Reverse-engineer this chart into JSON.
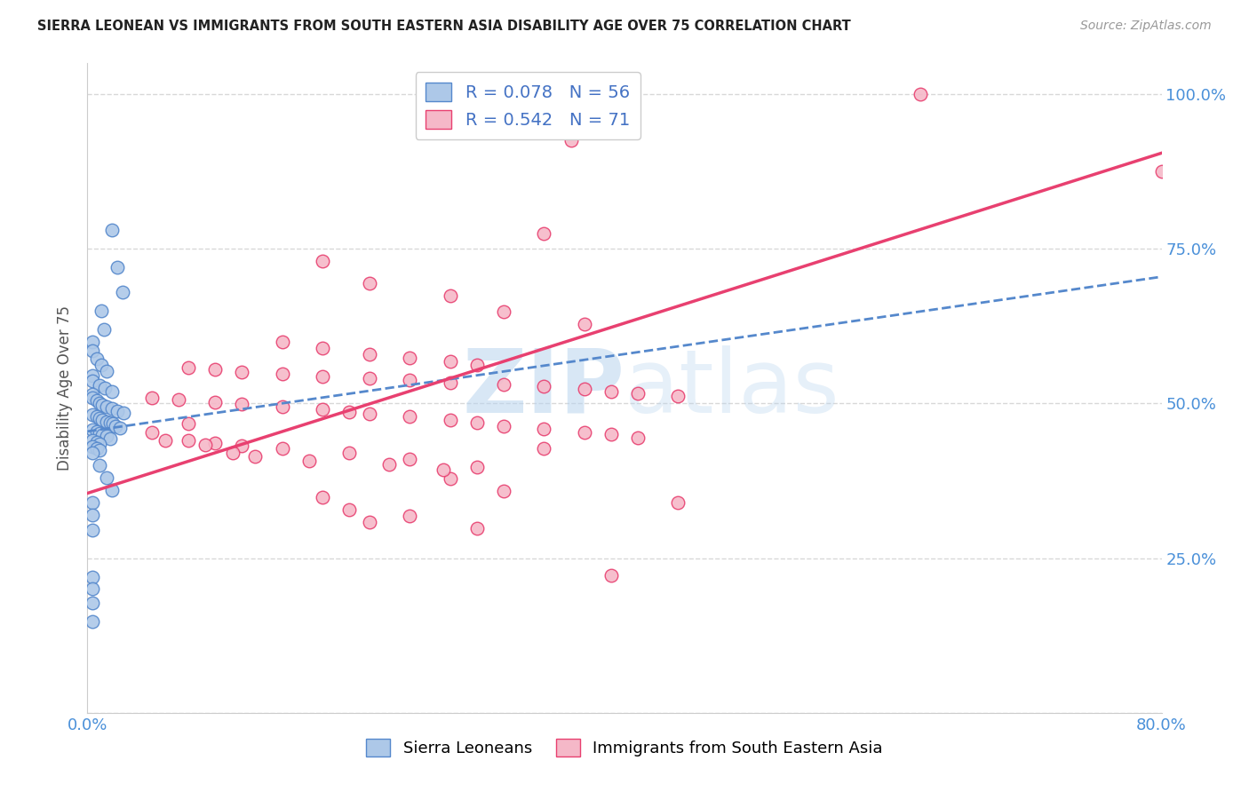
{
  "title": "SIERRA LEONEAN VS IMMIGRANTS FROM SOUTH EASTERN ASIA DISABILITY AGE OVER 75 CORRELATION CHART",
  "source": "Source: ZipAtlas.com",
  "xlabel": "",
  "ylabel": "Disability Age Over 75",
  "xlim": [
    0.0,
    0.8
  ],
  "ylim": [
    0.0,
    1.05
  ],
  "ytick_labels": [
    "",
    "25.0%",
    "50.0%",
    "75.0%",
    "100.0%"
  ],
  "ytick_values": [
    0.0,
    0.25,
    0.5,
    0.75,
    1.0
  ],
  "xtick_values": [
    0.0,
    0.1,
    0.2,
    0.3,
    0.4,
    0.5,
    0.6,
    0.7,
    0.8
  ],
  "legend_labels": [
    "Sierra Leoneans",
    "Immigrants from South Eastern Asia"
  ],
  "blue_R": 0.078,
  "blue_N": 56,
  "pink_R": 0.542,
  "pink_N": 71,
  "blue_color": "#adc8e8",
  "pink_color": "#f5b8c8",
  "blue_line_color": "#5588cc",
  "pink_line_color": "#e84070",
  "blue_trendline": [
    0.0,
    0.455,
    0.8,
    0.705
  ],
  "pink_trendline": [
    0.0,
    0.355,
    0.8,
    0.905
  ],
  "blue_scatter": [
    [
      0.018,
      0.78
    ],
    [
      0.022,
      0.72
    ],
    [
      0.026,
      0.68
    ],
    [
      0.01,
      0.65
    ],
    [
      0.012,
      0.62
    ],
    [
      0.004,
      0.6
    ],
    [
      0.004,
      0.585
    ],
    [
      0.007,
      0.572
    ],
    [
      0.01,
      0.562
    ],
    [
      0.014,
      0.552
    ],
    [
      0.004,
      0.545
    ],
    [
      0.004,
      0.537
    ],
    [
      0.009,
      0.53
    ],
    [
      0.013,
      0.525
    ],
    [
      0.018,
      0.52
    ],
    [
      0.004,
      0.515
    ],
    [
      0.004,
      0.51
    ],
    [
      0.007,
      0.505
    ],
    [
      0.009,
      0.5
    ],
    [
      0.011,
      0.498
    ],
    [
      0.014,
      0.495
    ],
    [
      0.018,
      0.492
    ],
    [
      0.022,
      0.488
    ],
    [
      0.027,
      0.485
    ],
    [
      0.004,
      0.482
    ],
    [
      0.007,
      0.479
    ],
    [
      0.009,
      0.477
    ],
    [
      0.011,
      0.474
    ],
    [
      0.014,
      0.471
    ],
    [
      0.017,
      0.469
    ],
    [
      0.019,
      0.467
    ],
    [
      0.021,
      0.464
    ],
    [
      0.024,
      0.461
    ],
    [
      0.004,
      0.458
    ],
    [
      0.007,
      0.455
    ],
    [
      0.009,
      0.452
    ],
    [
      0.011,
      0.449
    ],
    [
      0.014,
      0.447
    ],
    [
      0.017,
      0.444
    ],
    [
      0.004,
      0.44
    ],
    [
      0.007,
      0.437
    ],
    [
      0.009,
      0.434
    ],
    [
      0.004,
      0.43
    ],
    [
      0.007,
      0.427
    ],
    [
      0.009,
      0.424
    ],
    [
      0.004,
      0.42
    ],
    [
      0.009,
      0.4
    ],
    [
      0.014,
      0.38
    ],
    [
      0.018,
      0.36
    ],
    [
      0.004,
      0.34
    ],
    [
      0.004,
      0.32
    ],
    [
      0.004,
      0.295
    ],
    [
      0.004,
      0.22
    ],
    [
      0.004,
      0.2
    ],
    [
      0.004,
      0.178
    ],
    [
      0.004,
      0.148
    ]
  ],
  "pink_scatter": [
    [
      0.62,
      1.0
    ],
    [
      0.36,
      0.925
    ],
    [
      0.8,
      0.875
    ],
    [
      0.34,
      0.775
    ],
    [
      0.175,
      0.73
    ],
    [
      0.21,
      0.695
    ],
    [
      0.27,
      0.675
    ],
    [
      0.31,
      0.648
    ],
    [
      0.37,
      0.628
    ],
    [
      0.145,
      0.6
    ],
    [
      0.175,
      0.59
    ],
    [
      0.21,
      0.58
    ],
    [
      0.24,
      0.574
    ],
    [
      0.27,
      0.568
    ],
    [
      0.29,
      0.563
    ],
    [
      0.075,
      0.558
    ],
    [
      0.095,
      0.555
    ],
    [
      0.115,
      0.551
    ],
    [
      0.145,
      0.548
    ],
    [
      0.175,
      0.544
    ],
    [
      0.21,
      0.541
    ],
    [
      0.24,
      0.538
    ],
    [
      0.27,
      0.534
    ],
    [
      0.31,
      0.531
    ],
    [
      0.34,
      0.528
    ],
    [
      0.37,
      0.524
    ],
    [
      0.39,
      0.52
    ],
    [
      0.41,
      0.516
    ],
    [
      0.44,
      0.512
    ],
    [
      0.048,
      0.509
    ],
    [
      0.068,
      0.506
    ],
    [
      0.095,
      0.502
    ],
    [
      0.115,
      0.499
    ],
    [
      0.145,
      0.495
    ],
    [
      0.175,
      0.491
    ],
    [
      0.195,
      0.487
    ],
    [
      0.21,
      0.483
    ],
    [
      0.24,
      0.479
    ],
    [
      0.27,
      0.474
    ],
    [
      0.29,
      0.469
    ],
    [
      0.31,
      0.464
    ],
    [
      0.34,
      0.459
    ],
    [
      0.37,
      0.454
    ],
    [
      0.39,
      0.45
    ],
    [
      0.41,
      0.445
    ],
    [
      0.075,
      0.44
    ],
    [
      0.095,
      0.436
    ],
    [
      0.115,
      0.432
    ],
    [
      0.145,
      0.427
    ],
    [
      0.195,
      0.42
    ],
    [
      0.24,
      0.41
    ],
    [
      0.29,
      0.398
    ],
    [
      0.27,
      0.378
    ],
    [
      0.31,
      0.358
    ],
    [
      0.175,
      0.348
    ],
    [
      0.44,
      0.34
    ],
    [
      0.195,
      0.328
    ],
    [
      0.24,
      0.318
    ],
    [
      0.21,
      0.308
    ],
    [
      0.29,
      0.298
    ],
    [
      0.075,
      0.468
    ],
    [
      0.048,
      0.454
    ],
    [
      0.058,
      0.441
    ],
    [
      0.088,
      0.433
    ],
    [
      0.108,
      0.42
    ],
    [
      0.125,
      0.414
    ],
    [
      0.165,
      0.408
    ],
    [
      0.225,
      0.402
    ],
    [
      0.265,
      0.393
    ],
    [
      0.34,
      0.428
    ],
    [
      0.39,
      0.222
    ]
  ],
  "watermark_zip": "ZIP",
  "watermark_atlas": "atlas",
  "background_color": "#ffffff",
  "grid_color": "#d8d8d8"
}
